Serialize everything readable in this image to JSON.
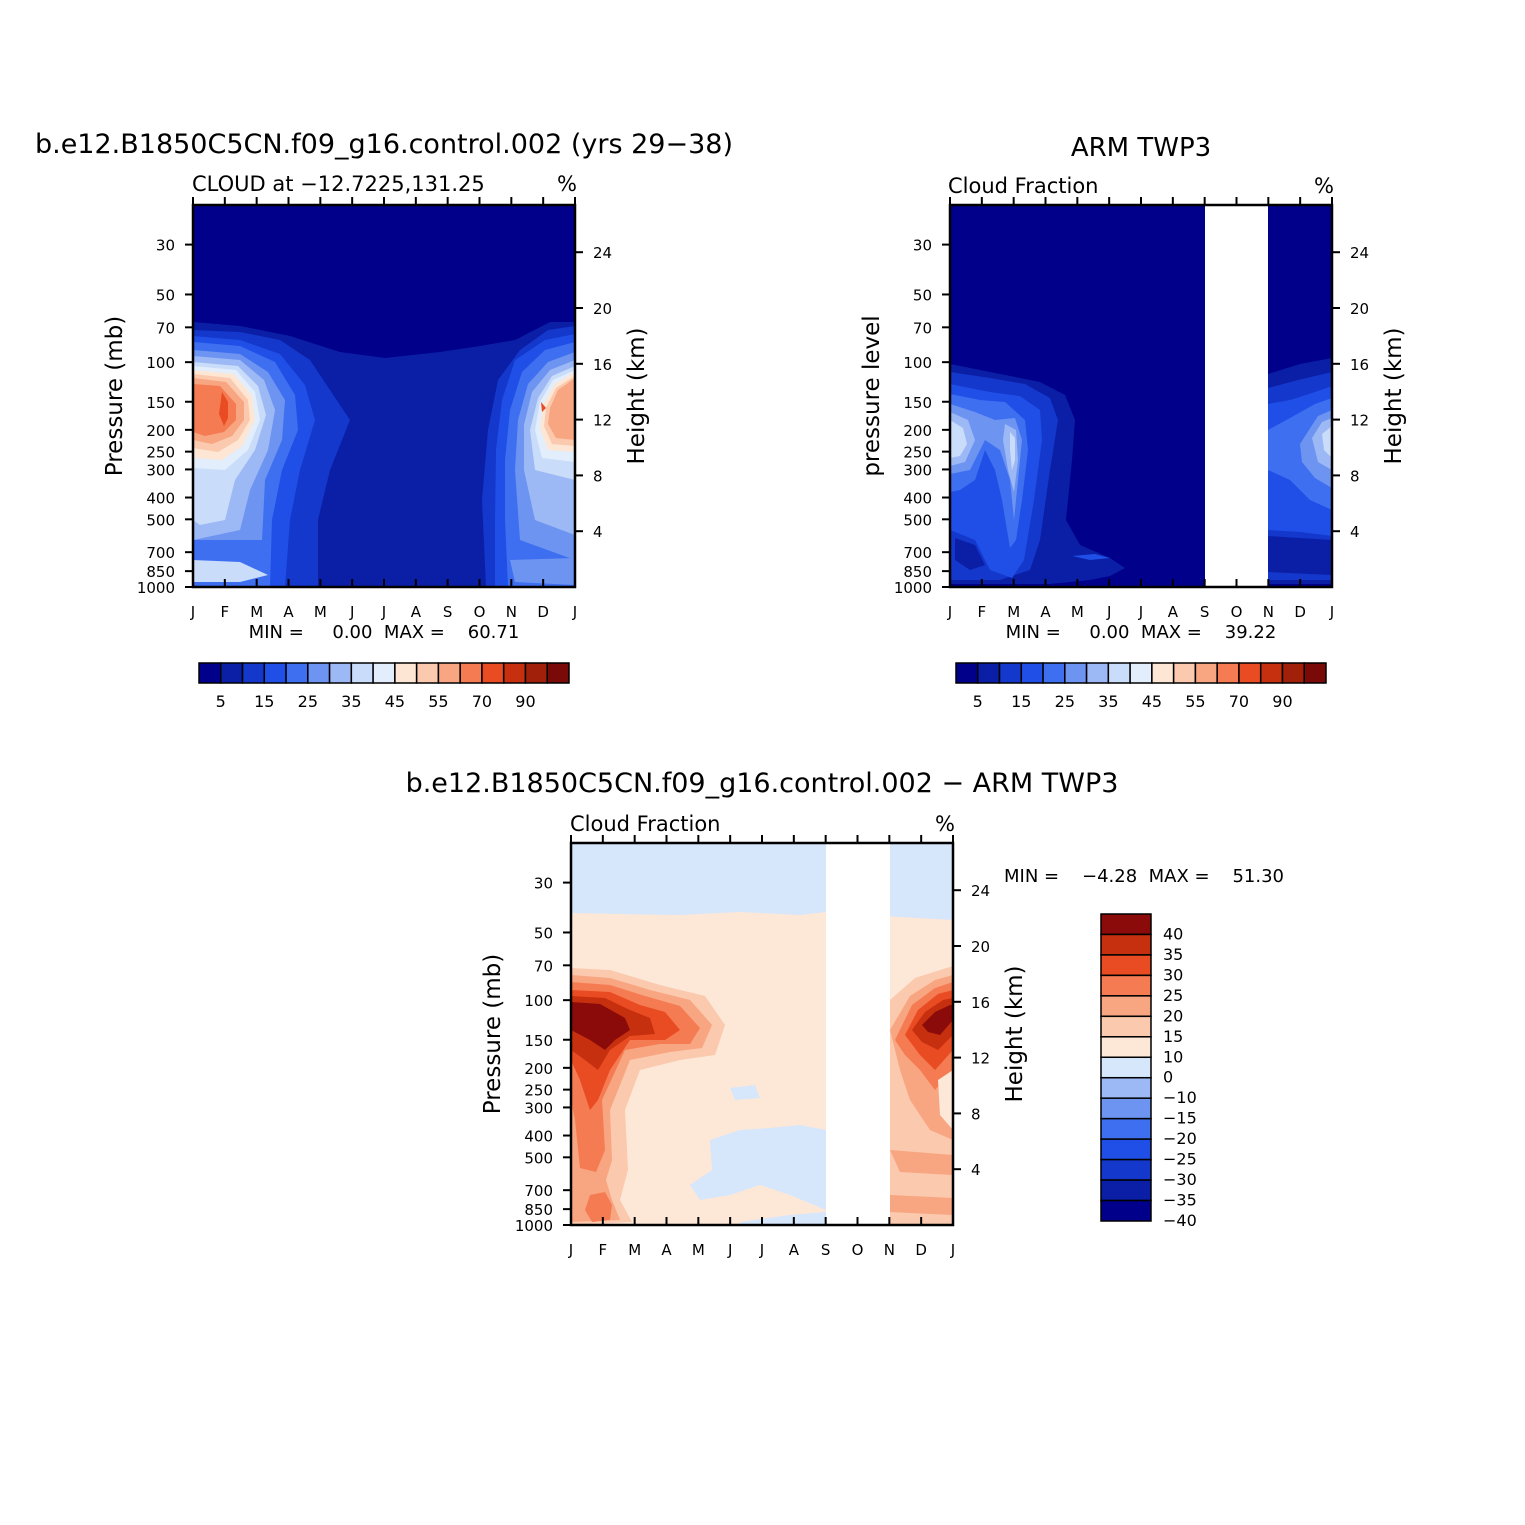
{
  "colors": {
    "abs_scale": [
      "#00008b",
      "#0a1fa6",
      "#1437cc",
      "#1f4fe6",
      "#3e6ff0",
      "#6e94f2",
      "#9db9f5",
      "#c9dcf9",
      "#e3eefd",
      "#fde6d4",
      "#fbc9ad",
      "#f8a582",
      "#f57b52",
      "#e94b22",
      "#c7300e",
      "#a1200a",
      "#7a0a08"
    ],
    "diff_scale": [
      "#00008b",
      "#0a1fa6",
      "#1437cc",
      "#1f4fe6",
      "#3e6ff0",
      "#6e94f2",
      "#9db9f5",
      "#d6e6fb",
      "#fde8d8",
      "#fbc9ad",
      "#f8a582",
      "#f57b52",
      "#e94b22",
      "#c7300e",
      "#8b0a0a"
    ],
    "missing": "#ffffff"
  },
  "panels": {
    "model": {
      "title": "b.e12.B1850C5CN.f09_g16.control.002 (yrs 29−38)",
      "subtitle_left": "CLOUD at −12.7225,131.25",
      "subtitle_right": "%",
      "ylabel_left": "Pressure (mb)",
      "ylabel_right": "Height (km)",
      "stats": "MIN =     0.00  MAX =    60.71"
    },
    "obs": {
      "title": "ARM TWP3",
      "subtitle_left": "Cloud Fraction",
      "subtitle_right": "%",
      "ylabel_left": "pressure level",
      "ylabel_right": "Height (km)",
      "stats": "MIN =     0.00  MAX =    39.22"
    },
    "diff": {
      "title": "b.e12.B1850C5CN.f09_g16.control.002 − ARM TWP3",
      "subtitle_left": "Cloud Fraction",
      "subtitle_right": "%",
      "ylabel_left": "Pressure (mb)",
      "ylabel_right": "Height (km)",
      "stats": "MIN =    −4.28  MAX =    51.30"
    }
  },
  "colorbar_abs": {
    "labels": [
      "5",
      "15",
      "25",
      "35",
      "45",
      "55",
      "70",
      "90"
    ]
  },
  "colorbar_diff": {
    "labels": [
      "40",
      "35",
      "30",
      "25",
      "20",
      "15",
      "10",
      "0",
      "−10",
      "−15",
      "−20",
      "−25",
      "−30",
      "−35",
      "−40"
    ]
  },
  "chart_data": [
    {
      "type": "heatmap",
      "name": "model",
      "x": [
        "J",
        "F",
        "M",
        "A",
        "M",
        "J",
        "J",
        "A",
        "S",
        "O",
        "N",
        "D",
        "J"
      ],
      "pressure_ticks": [
        "30",
        "50",
        "70",
        "100",
        "150",
        "200",
        "250",
        "300",
        "400",
        "500",
        "700",
        "850",
        "1000"
      ],
      "height_ticks": [
        "24",
        "20",
        "16",
        "12",
        "8",
        "4"
      ],
      "ylim": [
        1000,
        20
      ],
      "min": 0.0,
      "max": 60.71,
      "units": "%",
      "levels": [
        5,
        10,
        15,
        20,
        25,
        30,
        35,
        40,
        45,
        50,
        55,
        60,
        70,
        80,
        90
      ]
    },
    {
      "type": "heatmap",
      "name": "obs",
      "x": [
        "J",
        "F",
        "M",
        "A",
        "M",
        "J",
        "J",
        "A",
        "S",
        "O",
        "N",
        "D",
        "J"
      ],
      "pressure_ticks": [
        "30",
        "50",
        "70",
        "100",
        "150",
        "200",
        "250",
        "300",
        "400",
        "500",
        "700",
        "850",
        "1000"
      ],
      "height_ticks": [
        "24",
        "20",
        "16",
        "12",
        "8",
        "4"
      ],
      "ylim": [
        1000,
        20
      ],
      "min": 0.0,
      "max": 39.22,
      "units": "%",
      "missing_months": [
        "S",
        "O"
      ],
      "levels": [
        5,
        10,
        15,
        20,
        25,
        30,
        35,
        40,
        45,
        50,
        55,
        60,
        70,
        80,
        90
      ]
    },
    {
      "type": "heatmap",
      "name": "difference",
      "x": [
        "J",
        "F",
        "M",
        "A",
        "M",
        "J",
        "J",
        "A",
        "S",
        "O",
        "N",
        "D",
        "J"
      ],
      "pressure_ticks": [
        "30",
        "50",
        "70",
        "100",
        "150",
        "200",
        "250",
        "300",
        "400",
        "500",
        "700",
        "850",
        "1000"
      ],
      "height_ticks": [
        "24",
        "20",
        "16",
        "12",
        "8",
        "4"
      ],
      "ylim": [
        1000,
        20
      ],
      "min": -4.28,
      "max": 51.3,
      "units": "%",
      "missing_months": [
        "S",
        "O"
      ],
      "levels": [
        -40,
        -35,
        -30,
        -25,
        -20,
        -15,
        -10,
        0,
        10,
        15,
        20,
        25,
        30,
        35,
        40
      ]
    }
  ]
}
